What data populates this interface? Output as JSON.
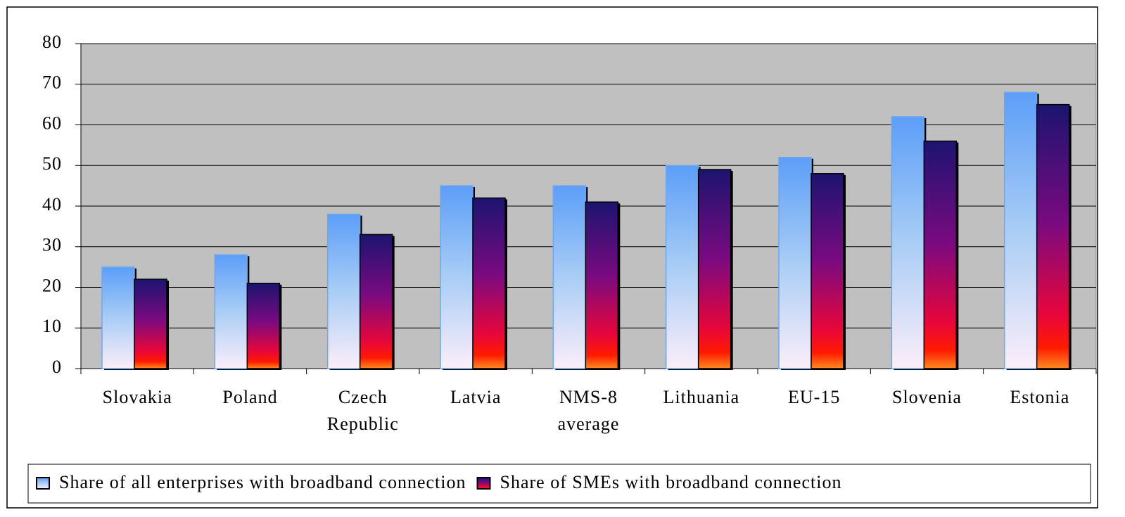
{
  "chart_data": {
    "type": "bar",
    "categories": [
      "Slovakia",
      "Poland",
      "Czech Republic",
      "Latvia",
      "NMS-8 average",
      "Lithuania",
      "EU-15",
      "Slovenia",
      "Estonia"
    ],
    "series": [
      {
        "name": "Share of all enterprises with broadband connection",
        "color": "#5c9ef8",
        "values": [
          25,
          28,
          38,
          45,
          45,
          50,
          52,
          62,
          68
        ]
      },
      {
        "name": "Share of SMEs with broadband connection",
        "color": "#1c1470",
        "values": [
          22,
          21,
          33,
          42,
          41,
          49,
          48,
          56,
          65
        ]
      }
    ],
    "ylim": [
      0,
      80
    ],
    "yticks": [
      0,
      10,
      20,
      30,
      40,
      50,
      60,
      70,
      80
    ],
    "grid": true,
    "legend": "bottom"
  }
}
